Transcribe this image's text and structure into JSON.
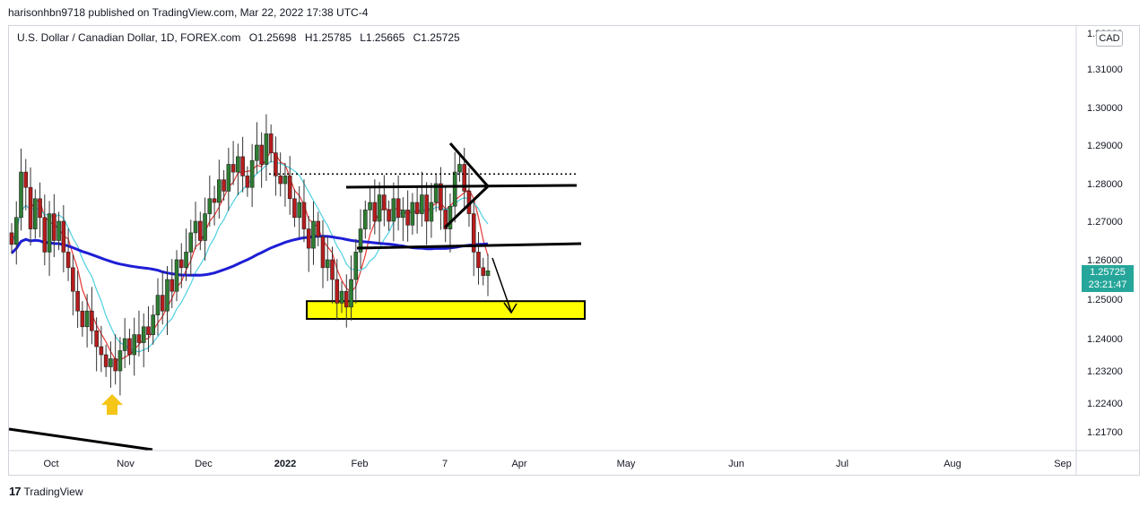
{
  "header": {
    "publisher_text": "harisonhbn9718 published on TradingView.com, Mar 22, 2022 17:38 UTC-4"
  },
  "legend": {
    "symbol": "U.S. Dollar / Canadian Dollar, 1D, FOREX.com",
    "open": "O1.25698",
    "high": "H1.25785",
    "low": "L1.25665",
    "close": "C1.25725"
  },
  "footer": {
    "logo_text": "TradingView"
  },
  "currency_label": "CAD",
  "last_price": {
    "value": "1.25725",
    "countdown": "23:21:47",
    "color": "#26a69a"
  },
  "colors": {
    "up": "#26a69a",
    "down": "#ef5350",
    "ma_slow": "#1e1ed6",
    "ma_fast": "#e53935",
    "ma_mid": "#4dd0e1",
    "zone": "#ffff00",
    "arrow_up": "#f5c518"
  },
  "chart_data": {
    "type": "candlestick",
    "symbol": "USDCAD",
    "timeframe": "1D",
    "price_ticks": [
      "1.32000",
      "1.31000",
      "1.30000",
      "1.29000",
      "1.28000",
      "1.27000",
      "1.26000",
      "1.25000",
      "1.24000",
      "1.23200",
      "1.22400",
      "1.21700"
    ],
    "time_ticks": [
      "Oct",
      "Nov",
      "Dec",
      "2022",
      "Feb",
      "7",
      "Apr",
      "May",
      "Jun",
      "Jul",
      "Aug",
      "Sep"
    ],
    "ylim": [
      1.2115,
      1.3222
    ],
    "grid": false,
    "close_series": [
      1.264,
      1.271,
      1.283,
      1.279,
      1.268,
      1.276,
      1.271,
      1.262,
      1.272,
      1.265,
      1.27,
      1.262,
      1.258,
      1.252,
      1.247,
      1.243,
      1.247,
      1.242,
      1.238,
      1.236,
      1.233,
      1.235,
      1.232,
      1.237,
      1.24,
      1.236,
      1.241,
      1.239,
      1.243,
      1.241,
      1.246,
      1.251,
      1.247,
      1.255,
      1.252,
      1.26,
      1.258,
      1.262,
      1.267,
      1.27,
      1.265,
      1.272,
      1.276,
      1.275,
      1.281,
      1.278,
      1.285,
      1.283,
      1.287,
      1.282,
      1.279,
      1.286,
      1.29,
      1.285,
      1.293,
      1.288,
      1.282,
      1.28,
      1.282,
      1.276,
      1.271,
      1.275,
      1.268,
      1.263,
      1.27,
      1.266,
      1.258,
      1.26,
      1.255,
      1.249,
      1.252,
      1.248,
      1.255,
      1.262,
      1.268,
      1.273,
      1.275,
      1.27,
      1.277,
      1.273,
      1.27,
      1.276,
      1.271,
      1.273,
      1.269,
      1.275,
      1.272,
      1.277,
      1.27,
      1.275,
      1.28,
      1.273,
      1.268,
      1.274,
      1.283,
      1.285,
      1.278,
      1.272,
      1.262,
      1.258,
      1.256,
      1.2572
    ],
    "annotations": {
      "support_zone": [
        1.245,
        1.2495
      ],
      "resistance_line": 1.279,
      "neckline_line": 1.2637,
      "dotted_line": 1.2825
    }
  }
}
